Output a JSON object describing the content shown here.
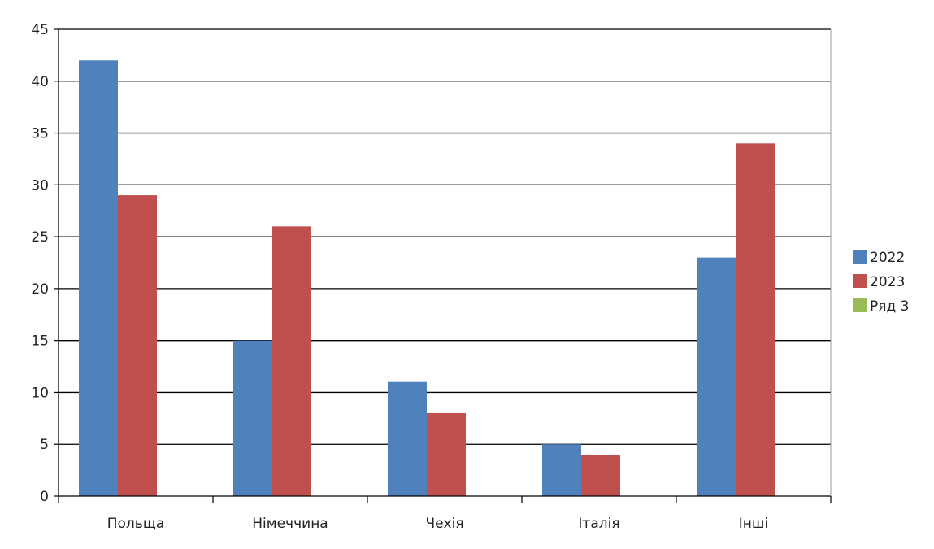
{
  "chart_data": {
    "type": "bar",
    "title": "",
    "xlabel": "",
    "ylabel": "",
    "categories": [
      "Польща",
      "Німеччина",
      "Чехія",
      "Італія",
      "Інші"
    ],
    "series": [
      {
        "name": "2022",
        "color": "#4F81BD",
        "values": [
          42,
          15,
          11,
          5,
          23
        ]
      },
      {
        "name": "2023",
        "color": "#C0504D",
        "values": [
          29,
          26,
          8,
          4,
          34
        ]
      },
      {
        "name": "Ряд 3",
        "color": "#9BBB59",
        "values": [
          0,
          0,
          0,
          0,
          0
        ]
      }
    ],
    "ylim": [
      0,
      45
    ],
    "yticks": [
      "0",
      "5",
      "10",
      "15",
      "20",
      "25",
      "30",
      "35",
      "40",
      "45"
    ],
    "grid": true,
    "legend_position": "right"
  }
}
